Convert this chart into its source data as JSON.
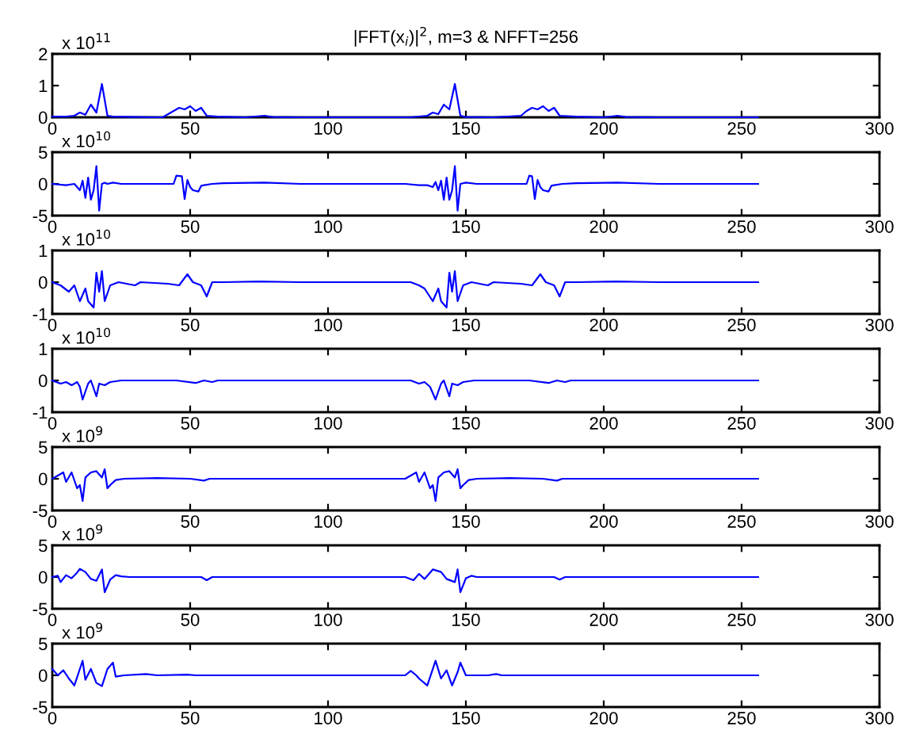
{
  "chart_data": [
    {
      "type": "line",
      "title": "|FFT(x$_{i}$)|$^{2}$, m=3 & NFFT=256",
      "annotations": [
        "x 10$^{11}$"
      ],
      "color": "#0000ff",
      "xlim": [
        0,
        300
      ],
      "xticks": [
        0,
        50,
        100,
        150,
        200,
        250,
        300
      ],
      "ylim": [
        0,
        2
      ],
      "yticks": [
        0,
        1,
        2
      ],
      "x": [
        0,
        5,
        8,
        10,
        12,
        14,
        16,
        18,
        20,
        22,
        30,
        40,
        44,
        46,
        48,
        50,
        52,
        54,
        56,
        60,
        70,
        77,
        80,
        90,
        100,
        120,
        130,
        136,
        138,
        140,
        142,
        144,
        146,
        148,
        150,
        160,
        170,
        172,
        174,
        176,
        178,
        180,
        182,
        184,
        190,
        200,
        205,
        208,
        220,
        240,
        256
      ],
      "values": [
        0.02,
        0.02,
        0.05,
        0.15,
        0.08,
        0.4,
        0.15,
        1.05,
        0.05,
        0.02,
        0.01,
        0,
        0.2,
        0.3,
        0.25,
        0.35,
        0.2,
        0.3,
        0.05,
        0.02,
        0,
        0.05,
        0.01,
        0,
        0,
        0,
        0,
        0.05,
        0.15,
        0.1,
        0.4,
        0.25,
        1.05,
        0.05,
        0.01,
        0,
        0.05,
        0.2,
        0.3,
        0.25,
        0.35,
        0.2,
        0.3,
        0.05,
        0.02,
        0,
        0.05,
        0.01,
        0,
        0,
        0
      ]
    },
    {
      "type": "line",
      "annotations": [
        "x 10$^{10}$"
      ],
      "color": "#0000ff",
      "xlim": [
        0,
        300
      ],
      "xticks": [
        0,
        50,
        100,
        150,
        200,
        250,
        300
      ],
      "ylim": [
        -5,
        5
      ],
      "yticks": [
        -5,
        0,
        5
      ],
      "x": [
        0,
        5,
        8,
        10,
        11,
        12,
        13,
        14,
        15,
        16,
        17,
        18,
        19,
        20,
        22,
        25,
        30,
        40,
        44,
        45,
        47,
        48,
        49,
        50,
        51,
        53,
        54,
        55,
        58,
        62,
        77,
        90,
        110,
        128,
        133,
        136,
        138,
        139,
        140,
        141,
        142,
        143,
        144,
        145,
        146,
        147,
        148,
        150,
        154,
        160,
        172,
        173,
        174,
        175,
        176,
        177,
        178,
        180,
        181,
        182,
        185,
        190,
        205,
        220,
        256
      ],
      "values": [
        0,
        -0.2,
        0,
        -1,
        0.5,
        -2.2,
        1,
        -2.5,
        -1,
        2.8,
        -4.2,
        0,
        0.2,
        0,
        0.2,
        0,
        0,
        0,
        0,
        1.3,
        1.2,
        -2.4,
        0.6,
        -0.5,
        -1,
        -1.2,
        -0.3,
        -0.2,
        0,
        0.1,
        0.2,
        0,
        0,
        0,
        -0.2,
        -0.2,
        -0.5,
        0.3,
        -1,
        0.5,
        -2.5,
        1,
        -2.5,
        -1,
        2.8,
        -4.2,
        0,
        0.2,
        0,
        0,
        0,
        1.3,
        1.2,
        -2.4,
        0.6,
        -0.5,
        -1,
        -1.2,
        -0.3,
        -0.2,
        0,
        0.1,
        0.2,
        0,
        0
      ]
    },
    {
      "type": "line",
      "annotations": [
        "x 10$^{10}$"
      ],
      "color": "#0000ff",
      "xlim": [
        0,
        300
      ],
      "xticks": [
        0,
        50,
        100,
        150,
        200,
        250,
        300
      ],
      "ylim": [
        -1,
        1
      ],
      "yticks": [
        -1,
        0,
        1
      ],
      "x": [
        0,
        3,
        6,
        8,
        10,
        12,
        13,
        15,
        16,
        17,
        18,
        19,
        21,
        24,
        30,
        32,
        42,
        46,
        49,
        51,
        54,
        56,
        58,
        62,
        75,
        90,
        130,
        133,
        135,
        138,
        140,
        141,
        143,
        144,
        145,
        146,
        147,
        149,
        152,
        158,
        160,
        170,
        174,
        177,
        179,
        182,
        184,
        186,
        190,
        205,
        220,
        256
      ],
      "values": [
        0,
        -0.1,
        -0.3,
        -0.1,
        -0.6,
        -0.2,
        -0.6,
        -0.8,
        0.3,
        -0.3,
        0.35,
        -0.6,
        -0.1,
        0,
        -0.1,
        0,
        -0.05,
        -0.1,
        0.25,
        0,
        -0.1,
        -0.45,
        0,
        0,
        0.02,
        0,
        0,
        -0.1,
        -0.2,
        -0.6,
        -0.2,
        -0.6,
        -0.8,
        0.3,
        -0.3,
        0.35,
        -0.6,
        -0.1,
        0,
        -0.1,
        0,
        -0.05,
        -0.1,
        0.25,
        0,
        -0.1,
        -0.45,
        0,
        0,
        0.02,
        0,
        0
      ]
    },
    {
      "type": "line",
      "annotations": [
        "x 10$^{10}$"
      ],
      "color": "#0000ff",
      "xlim": [
        0,
        300
      ],
      "xticks": [
        0,
        50,
        100,
        150,
        200,
        250,
        300
      ],
      "ylim": [
        -1,
        1
      ],
      "yticks": [
        -1,
        0,
        1
      ],
      "x": [
        0,
        3,
        5,
        7,
        9,
        10,
        11,
        13,
        14,
        16,
        17,
        19,
        21,
        25,
        45,
        52,
        55,
        58,
        60,
        130,
        133,
        135,
        137,
        139,
        141,
        142,
        144,
        145,
        147,
        149,
        153,
        173,
        180,
        183,
        186,
        188,
        256
      ],
      "values": [
        0,
        -0.1,
        -0.05,
        -0.15,
        -0.05,
        -0.2,
        -0.6,
        -0.1,
        0,
        -0.5,
        -0.1,
        -0.15,
        -0.05,
        0,
        0,
        -0.08,
        0,
        -0.05,
        0,
        0,
        -0.1,
        -0.05,
        -0.2,
        -0.6,
        -0.1,
        0,
        -0.5,
        -0.1,
        -0.15,
        -0.05,
        0,
        0,
        -0.08,
        0,
        -0.05,
        0,
        0
      ]
    },
    {
      "type": "line",
      "annotations": [
        "x 10$^{9}$"
      ],
      "color": "#0000ff",
      "xlim": [
        0,
        300
      ],
      "xticks": [
        0,
        50,
        100,
        150,
        200,
        250,
        300
      ],
      "ylim": [
        -5,
        5
      ],
      "yticks": [
        -5,
        0,
        5
      ],
      "x": [
        0,
        2,
        4,
        5,
        7,
        9,
        10,
        11,
        12,
        14,
        16,
        18,
        19,
        20,
        21,
        23,
        26,
        38,
        50,
        55,
        57,
        128,
        130,
        132,
        133,
        135,
        137,
        138,
        139,
        140,
        142,
        144,
        146,
        147,
        148,
        149,
        151,
        154,
        166,
        178,
        183,
        185,
        256
      ],
      "values": [
        0,
        0.5,
        1,
        -0.5,
        1,
        -1.5,
        -1,
        -3.5,
        0.2,
        1,
        1.2,
        0.2,
        1.5,
        -1.5,
        -1,
        -0.2,
        0,
        0.1,
        0,
        -0.3,
        0,
        0,
        0.5,
        1,
        -0.5,
        1,
        -1.5,
        -1,
        -3.5,
        0.2,
        1,
        1.2,
        0.2,
        1.5,
        -1.5,
        -1,
        -0.2,
        0,
        0.1,
        0,
        -0.3,
        0,
        0
      ]
    },
    {
      "type": "line",
      "annotations": [
        "x 10$^{9}$"
      ],
      "color": "#0000ff",
      "xlim": [
        0,
        300
      ],
      "xticks": [
        0,
        50,
        100,
        150,
        200,
        250,
        300
      ],
      "ylim": [
        -5,
        5
      ],
      "yticks": [
        -5,
        0,
        5
      ],
      "x": [
        0,
        2,
        3,
        5,
        7,
        9,
        10,
        12,
        14,
        16,
        18,
        19,
        21,
        23,
        25,
        28,
        54,
        56,
        58,
        128,
        131,
        133,
        135,
        138,
        141,
        143,
        146,
        147,
        148,
        150,
        152,
        154,
        182,
        184,
        186,
        256
      ],
      "values": [
        0,
        0.2,
        -0.8,
        0.3,
        -0.2,
        0.7,
        1.3,
        0.8,
        -0.3,
        -0.6,
        1.2,
        -2.4,
        -0.4,
        0.3,
        0.1,
        0,
        0,
        -0.5,
        0,
        0,
        -0.5,
        0.5,
        -0.3,
        1.2,
        0.8,
        -0.3,
        -0.8,
        1.2,
        -2.4,
        -0.2,
        0.2,
        0,
        0,
        -0.4,
        0,
        0
      ]
    },
    {
      "type": "line",
      "annotations": [
        "x 10$^{9}$"
      ],
      "color": "#0000ff",
      "xlim": [
        0,
        300
      ],
      "xticks": [
        0,
        50,
        100,
        150,
        200,
        250,
        300
      ],
      "ylim": [
        -5,
        5
      ],
      "yticks": [
        -5,
        0,
        5
      ],
      "x": [
        0,
        2,
        4,
        6,
        8,
        10,
        11,
        12,
        14,
        16,
        18,
        20,
        22,
        23,
        26,
        34,
        38,
        49,
        52,
        128,
        130,
        132,
        133,
        136,
        139,
        141,
        143,
        145,
        147,
        148,
        150,
        158,
        161,
        163,
        256
      ],
      "values": [
        1,
        0,
        0.8,
        -0.5,
        -1.6,
        1,
        2.3,
        -0.7,
        1,
        -1.2,
        -1.7,
        1,
        2,
        -0.2,
        0,
        0.2,
        0,
        0.1,
        0,
        0,
        0.7,
        0,
        -0.5,
        -1.6,
        2.3,
        -0.5,
        0.8,
        -1.6,
        0.5,
        2,
        0,
        0,
        0.2,
        0,
        0
      ]
    }
  ]
}
